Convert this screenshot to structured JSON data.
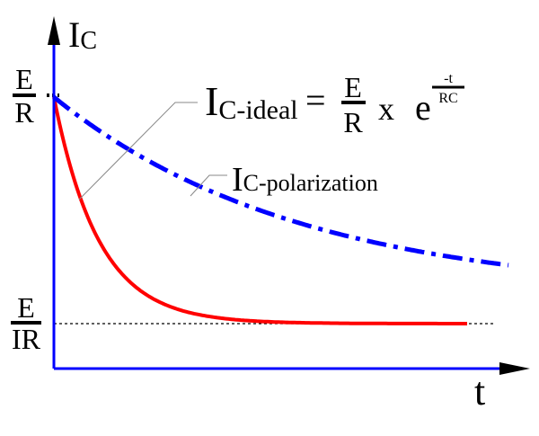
{
  "axes": {
    "y_label_main": "I",
    "y_label_sub": "C",
    "x_label": "t",
    "axis_color": "#0000ff"
  },
  "levels": {
    "top": {
      "numerator": "E",
      "denominator": "R"
    },
    "bottom": {
      "numerator": "E",
      "denominator": "IR"
    }
  },
  "curves": {
    "ideal": {
      "color": "#ff0000",
      "style": "solid",
      "label_main": "I",
      "label_sub": "C-ideal",
      "formula": {
        "equals": "=",
        "numerator": "E",
        "denominator": "R",
        "times": "x",
        "base": "e",
        "exp_numerator": "-t",
        "exp_denominator": "RC"
      }
    },
    "polarization": {
      "color": "#0000ff",
      "style": "dash-dot",
      "label_main": "I",
      "label_sub": "C-polarization"
    }
  }
}
